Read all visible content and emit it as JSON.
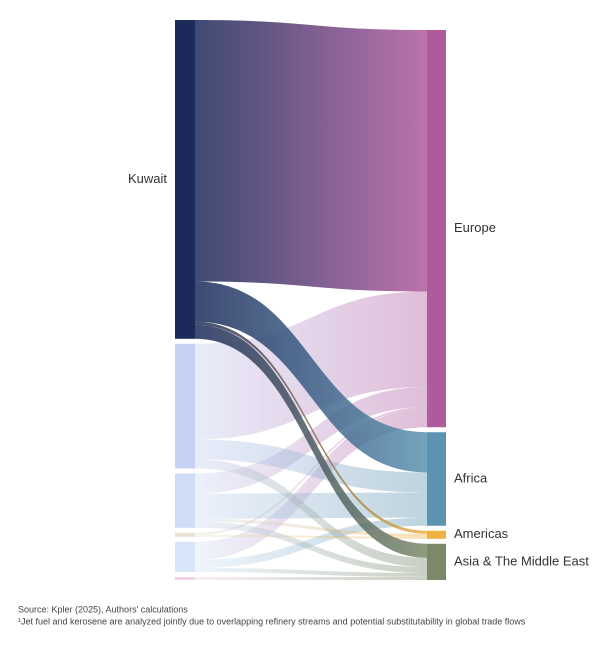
{
  "chart_data": {
    "type": "sankey",
    "sources": [
      {
        "name": "Kuwait",
        "color": "#1b2a5a"
      },
      {
        "name": null,
        "color": "#c6d0f2"
      },
      {
        "name": null,
        "color": "#cfdcf5"
      },
      {
        "name": null,
        "color": "#e6e2d2"
      },
      {
        "name": null,
        "color": "#d8e4f8"
      },
      {
        "name": null,
        "color": "#f0d4e6"
      }
    ],
    "targets": [
      {
        "name": "Europe",
        "color": "#b05a9e"
      },
      {
        "name": "Africa",
        "color": "#5b93b0"
      },
      {
        "name": "Americas",
        "color": "#f0b040"
      },
      {
        "name": "Asia & The Middle East",
        "color": "#7a8a68"
      }
    ],
    "links": [
      {
        "source": 0,
        "target": 0,
        "value": 260
      },
      {
        "source": 0,
        "target": 1,
        "value": 40
      },
      {
        "source": 0,
        "target": 2,
        "value": 3
      },
      {
        "source": 0,
        "target": 3,
        "value": 14
      },
      {
        "source": 1,
        "target": 0,
        "value": 95
      },
      {
        "source": 1,
        "target": 1,
        "value": 20
      },
      {
        "source": 1,
        "target": 3,
        "value": 9
      },
      {
        "source": 2,
        "target": 0,
        "value": 20
      },
      {
        "source": 2,
        "target": 1,
        "value": 25
      },
      {
        "source": 2,
        "target": 2,
        "value": 3
      },
      {
        "source": 2,
        "target": 3,
        "value": 6
      },
      {
        "source": 3,
        "target": 0,
        "value": 2
      },
      {
        "source": 3,
        "target": 2,
        "value": 2
      },
      {
        "source": 4,
        "target": 0,
        "value": 18
      },
      {
        "source": 4,
        "target": 1,
        "value": 8
      },
      {
        "source": 4,
        "target": 3,
        "value": 4
      },
      {
        "source": 5,
        "target": 3,
        "value": 3
      }
    ],
    "source_note": "Source: Kpler (2025), Authors' calculations",
    "footnote": "¹Jet fuel and kerosene are analyzed jointly due to overlapping refinery streams and potential substitutability in global trade flows"
  }
}
